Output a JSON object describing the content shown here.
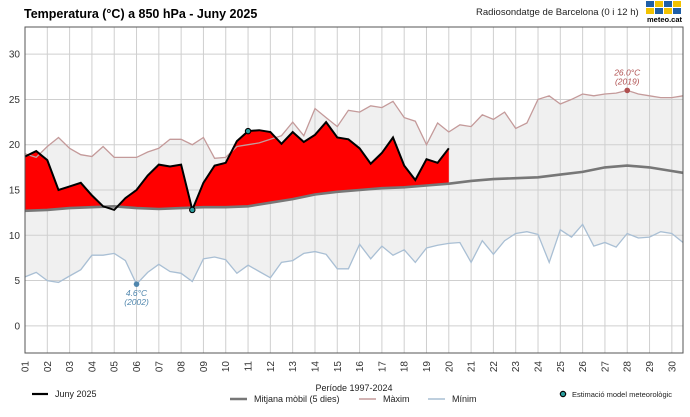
{
  "header": {
    "title": "Temperatura (°C) a 850 hPa - Juny 2025",
    "subtitle": "Radiosondatge de Barcelona (0 i 12 h)",
    "logo_text": "meteo.cat"
  },
  "colors": {
    "observed": "#000000",
    "fill_above": "#ff0000",
    "band": "#f0f0f0",
    "mean": "#777777",
    "max_line": "#c49a9a",
    "min_line": "#a9bfd4",
    "max_record": "#b05050",
    "min_record": "#4f86ad",
    "estimate": "#2a9d9d",
    "grid": "#cfcfcf",
    "logo": [
      "#1f5fa8",
      "#f2c200",
      "#1f5fa8",
      "#f2c200",
      "#f2c200",
      "#1f5fa8",
      "#f2c200",
      "#1f5fa8"
    ]
  },
  "chart_data": {
    "type": "line",
    "title": "Temperatura (°C) a 850 hPa - Juny 2025",
    "x_tick_labels": [
      "01",
      "02",
      "03",
      "04",
      "05",
      "06",
      "07",
      "08",
      "09",
      "10",
      "11",
      "12",
      "13",
      "14",
      "15",
      "16",
      "17",
      "18",
      "19",
      "20",
      "21",
      "22",
      "23",
      "24",
      "25",
      "26",
      "27",
      "28",
      "29",
      "30"
    ],
    "xlim": [
      1,
      30.5
    ],
    "ylim": [
      -3,
      33
    ],
    "y_ticks": [
      0,
      5,
      10,
      15,
      20,
      25,
      30
    ],
    "grid": true,
    "legend_position": "bottom",
    "series": [
      {
        "name": "Juny 2025",
        "style": "observed",
        "x": [
          1,
          1.5,
          2,
          2.5,
          3,
          3.5,
          4,
          4.5,
          5,
          5.5,
          6,
          6.5,
          7,
          7.5,
          8,
          8.5,
          9,
          9.5,
          10,
          10.5,
          11,
          11.5,
          12,
          12.5,
          13,
          13.5,
          14,
          14.5,
          15,
          15.5,
          16,
          16.5,
          17,
          17.5,
          18,
          18.5,
          19,
          19.5,
          20
        ],
        "values": [
          18.7,
          19.3,
          18.3,
          15.0,
          15.4,
          15.8,
          14.4,
          13.2,
          12.8,
          14.1,
          15.0,
          16.6,
          17.8,
          17.6,
          17.8,
          12.8,
          15.8,
          17.7,
          18.0,
          20.4,
          21.5,
          21.6,
          21.4,
          20.1,
          21.4,
          20.3,
          21.1,
          22.5,
          20.8,
          20.6,
          19.6,
          17.9,
          19.1,
          20.8,
          17.7,
          16.1,
          18.4,
          18.0,
          19.6
        ]
      },
      {
        "name": "Mitjana mòbil (5 dies)",
        "style": "mean",
        "x": [
          1,
          2,
          3,
          4,
          5,
          6,
          7,
          8,
          9,
          10,
          11,
          12,
          13,
          14,
          15,
          16,
          17,
          18,
          19,
          20,
          21,
          22,
          23,
          24,
          25,
          26,
          27,
          28,
          29,
          30,
          30.5
        ],
        "values": [
          12.7,
          12.8,
          13.0,
          13.1,
          13.2,
          13.0,
          12.9,
          13.0,
          13.1,
          13.1,
          13.2,
          13.6,
          14.0,
          14.5,
          14.8,
          15.0,
          15.2,
          15.3,
          15.5,
          15.7,
          16.0,
          16.2,
          16.3,
          16.4,
          16.7,
          17.0,
          17.5,
          17.7,
          17.5,
          17.1,
          16.9
        ]
      },
      {
        "name": "Màxim",
        "style": "max",
        "x": [
          1,
          1.5,
          2,
          2.5,
          3,
          3.5,
          4,
          4.5,
          5,
          5.5,
          6,
          6.5,
          7,
          7.5,
          8,
          8.5,
          9,
          9.5,
          10,
          10.5,
          11,
          11.5,
          12,
          12.5,
          13,
          13.5,
          14,
          14.5,
          15,
          15.5,
          16,
          16.5,
          17,
          17.5,
          18,
          18.5,
          19,
          19.5,
          20,
          20.5,
          21,
          21.5,
          22,
          22.5,
          23,
          23.5,
          24,
          24.5,
          25,
          25.5,
          26,
          26.5,
          27,
          27.5,
          28,
          28.5,
          29,
          29.5,
          30,
          30.5
        ],
        "values": [
          19.0,
          18.6,
          19.8,
          20.8,
          19.6,
          18.9,
          18.7,
          19.8,
          18.6,
          18.6,
          18.6,
          19.2,
          19.6,
          20.6,
          20.6,
          20.0,
          20.8,
          18.5,
          18.6,
          19.8,
          20.0,
          20.2,
          20.6,
          21.0,
          22.5,
          21.0,
          24.0,
          23.0,
          22.0,
          23.8,
          23.6,
          24.3,
          24.1,
          24.8,
          23.0,
          22.6,
          20.0,
          22.4,
          21.4,
          22.2,
          22.0,
          23.3,
          22.8,
          23.6,
          21.8,
          22.4,
          25.0,
          25.4,
          24.5,
          25.0,
          25.6,
          25.4,
          25.6,
          25.7,
          26.0,
          25.6,
          25.4,
          25.2,
          25.2,
          25.4
        ]
      },
      {
        "name": "Mínim",
        "style": "min",
        "x": [
          1,
          1.5,
          2,
          2.5,
          3,
          3.5,
          4,
          4.5,
          5,
          5.5,
          6,
          6.5,
          7,
          7.5,
          8,
          8.5,
          9,
          9.5,
          10,
          10.5,
          11,
          11.5,
          12,
          12.5,
          13,
          13.5,
          14,
          14.5,
          15,
          15.5,
          16,
          16.5,
          17,
          17.5,
          18,
          18.5,
          19,
          19.5,
          20,
          20.5,
          21,
          21.5,
          22,
          22.5,
          23,
          23.5,
          24,
          24.5,
          25,
          25.5,
          26,
          26.5,
          27,
          27.5,
          28,
          28.5,
          29,
          29.5,
          30,
          30.5
        ],
        "values": [
          5.4,
          5.9,
          5.0,
          4.8,
          5.5,
          6.2,
          7.8,
          7.8,
          8.0,
          7.2,
          4.6,
          5.9,
          6.8,
          6.0,
          5.8,
          4.9,
          7.4,
          7.6,
          7.3,
          5.8,
          6.7,
          6.0,
          5.3,
          7.0,
          7.2,
          8.0,
          8.2,
          7.9,
          6.3,
          6.3,
          9.0,
          7.4,
          8.8,
          7.8,
          8.4,
          7.0,
          8.6,
          8.9,
          9.1,
          9.2,
          7.0,
          9.4,
          7.9,
          9.4,
          10.2,
          10.4,
          10.1,
          7.0,
          10.6,
          9.8,
          11.2,
          8.8,
          9.2,
          8.7,
          10.2,
          9.7,
          9.8,
          10.4,
          10.2,
          9.2
        ]
      }
    ],
    "estimates": [
      {
        "x": 8.5,
        "y": 12.8
      },
      {
        "x": 11,
        "y": 21.5
      }
    ],
    "records": [
      {
        "kind": "max",
        "x": 28,
        "y": 26.0,
        "value_label": "26.0°C",
        "year_label": "(2019)"
      },
      {
        "kind": "min",
        "x": 6,
        "y": 4.6,
        "value_label": "4.6°C",
        "year_label": "(2002)"
      }
    ],
    "legend": {
      "observed": "Juny 2025",
      "period": "Període 1997-2024",
      "mean": "Mitjana mòbil (5 dies)",
      "max": "Màxim",
      "min": "Mínim",
      "estimate": "Estimació model meteorològic"
    }
  }
}
